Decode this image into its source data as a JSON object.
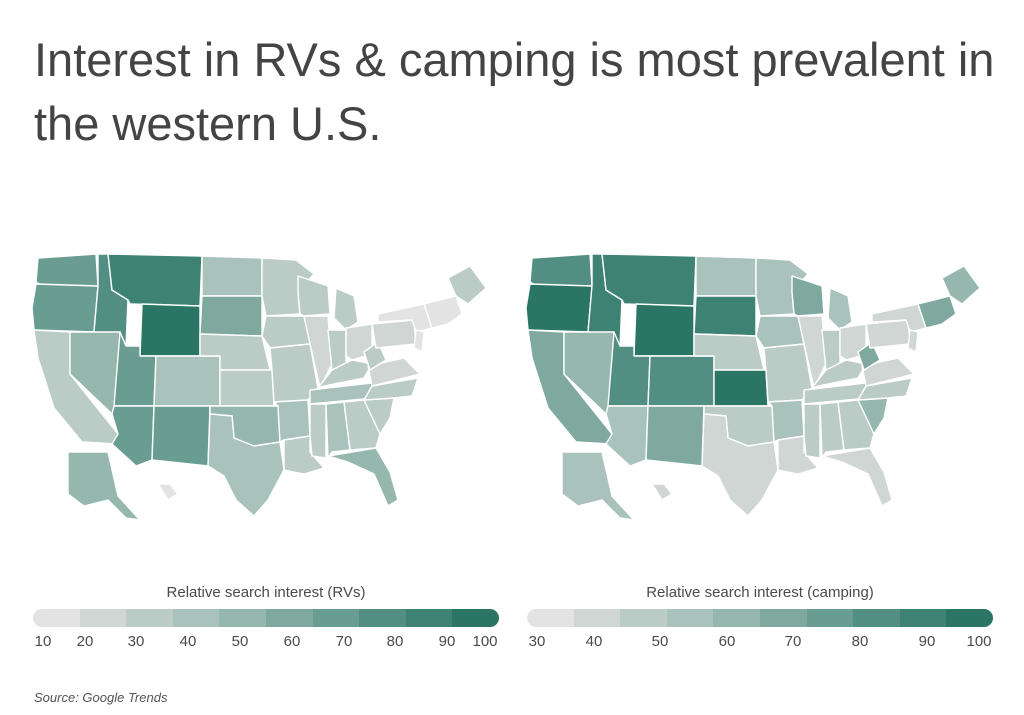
{
  "title": "Interest in RVs & camping is most prevalent in the western U.S.",
  "source": "Source:  Google Trends",
  "colors": {
    "c1": "#e3e3e3",
    "c2": "#d0d6d4",
    "c3": "#bbcbc6",
    "c4": "#a9c2bb",
    "c5": "#95b7ae",
    "c6": "#7fa99f",
    "c7": "#6a9d91",
    "c8": "#528f82",
    "c9": "#3e8273",
    "c10": "#2b7565"
  },
  "maps": {
    "rv": {
      "legend_title": "Relative search interest (RVs)",
      "legend_ticks": [
        "10",
        "20",
        "30",
        "40",
        "50",
        "60",
        "70",
        "80",
        "90",
        "100"
      ],
      "legend_colors": [
        "#e3e3e3",
        "#d0d6d4",
        "#bbcbc6",
        "#a9c2bb",
        "#95b7ae",
        "#7fa99f",
        "#6a9d91",
        "#528f82",
        "#3e8273",
        "#2b7565"
      ],
      "states": {
        "WA": "#6a9d91",
        "OR": "#6a9d91",
        "ID": "#528f82",
        "MT": "#3e8273",
        "WY": "#2b7565",
        "CA": "#bbcbc6",
        "NV": "#95b7ae",
        "UT": "#6a9d91",
        "CO": "#a9c2bb",
        "AZ": "#6a9d91",
        "NM": "#6a9d91",
        "ND": "#a9c2bb",
        "SD": "#7fa99f",
        "NE": "#bbcbc6",
        "KS": "#bbcbc6",
        "OK": "#95b7ae",
        "TX": "#a9c2bb",
        "MN": "#bbcbc6",
        "IA": "#bbcbc6",
        "MO": "#bbcbc6",
        "AR": "#a9c2bb",
        "LA": "#bbcbc6",
        "WI": "#bbcbc6",
        "IL": "#d0d6d4",
        "MI": "#bbcbc6",
        "IN": "#bbcbc6",
        "OH": "#d0d6d4",
        "KY": "#bbcbc6",
        "TN": "#a9c2bb",
        "MS": "#bbcbc6",
        "AL": "#a9c2bb",
        "GA": "#bbcbc6",
        "FL": "#95b7ae",
        "SC": "#bbcbc6",
        "NC": "#bbcbc6",
        "VA": "#d0d6d4",
        "WV": "#bbcbc6",
        "PA": "#d0d6d4",
        "NY": "#e3e3e3",
        "NJ": "#e3e3e3",
        "NE_states": "#e3e3e3",
        "ME": "#bbcbc6",
        "AK": "#95b7ae",
        "HI": "#e3e3e3"
      }
    },
    "camping": {
      "legend_title": "Relative search interest (camping)",
      "legend_ticks": [
        "30",
        "40",
        "50",
        "60",
        "70",
        "80",
        "90",
        "100"
      ],
      "legend_colors": [
        "#e3e3e3",
        "#d0d6d4",
        "#bbcbc6",
        "#a9c2bb",
        "#95b7ae",
        "#7fa99f",
        "#6a9d91",
        "#528f82",
        "#3e8273",
        "#2b7565"
      ],
      "states": {
        "WA": "#528f82",
        "OR": "#2b7565",
        "ID": "#3e8273",
        "MT": "#3e8273",
        "WY": "#2b7565",
        "CA": "#7fa99f",
        "NV": "#95b7ae",
        "UT": "#528f82",
        "CO": "#528f82",
        "AZ": "#a9c2bb",
        "NM": "#7fa99f",
        "ND": "#a9c2bb",
        "SD": "#3e8273",
        "NE": "#bbcbc6",
        "KS": "#2b7565",
        "OK": "#bbcbc6",
        "TX": "#d0d6d4",
        "MN": "#a9c2bb",
        "IA": "#a9c2bb",
        "MO": "#bbcbc6",
        "AR": "#a9c2bb",
        "LA": "#d0d6d4",
        "WI": "#7fa99f",
        "IL": "#d0d6d4",
        "MI": "#a9c2bb",
        "IN": "#bbcbc6",
        "OH": "#d0d6d4",
        "KY": "#bbcbc6",
        "TN": "#bbcbc6",
        "MS": "#bbcbc6",
        "AL": "#bbcbc6",
        "GA": "#bbcbc6",
        "FL": "#d0d6d4",
        "SC": "#95b7ae",
        "NC": "#bbcbc6",
        "VA": "#d0d6d4",
        "WV": "#7fa99f",
        "PA": "#d0d6d4",
        "NY": "#d0d6d4",
        "NJ": "#d0d6d4",
        "NE_states": "#7fa99f",
        "ME": "#95b7ae",
        "AK": "#a9c2bb",
        "HI": "#d0d6d4"
      }
    }
  }
}
